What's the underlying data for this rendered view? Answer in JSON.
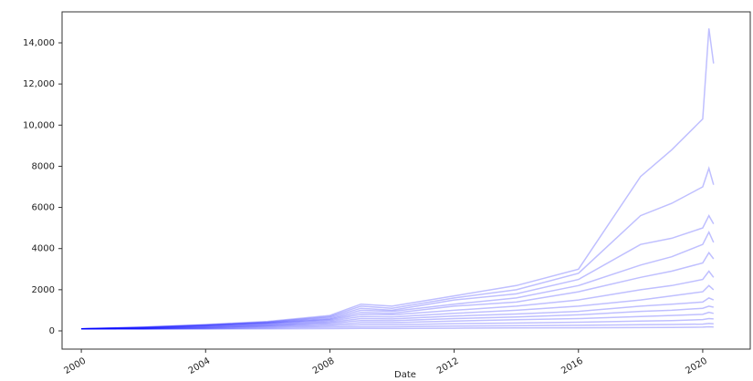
{
  "chart_data": {
    "type": "line",
    "xlabel": "Date",
    "x": [
      2000,
      2002,
      2004,
      2006,
      2008,
      2009,
      2010,
      2012,
      2014,
      2016,
      2018,
      2019,
      2020,
      2020.2,
      2020.35
    ],
    "series": [
      {
        "color": "#0000ff",
        "values": [
          100,
          190,
          310,
          460,
          750,
          1300,
          1200,
          1700,
          2200,
          3000,
          7500,
          8800,
          10300,
          14700,
          13000
        ]
      },
      {
        "color": "#0000ff",
        "values": [
          100,
          180,
          290,
          430,
          700,
          1200,
          1100,
          1600,
          2000,
          2800,
          5600,
          6200,
          7000,
          7900,
          7100
        ]
      },
      {
        "color": "#0000ff",
        "values": [
          100,
          170,
          280,
          410,
          650,
          1100,
          1000,
          1500,
          1800,
          2500,
          4200,
          4500,
          5000,
          5600,
          5200
        ]
      },
      {
        "color": "#0000ff",
        "values": [
          100,
          160,
          270,
          390,
          600,
          1000,
          950,
          1300,
          1600,
          2200,
          3200,
          3600,
          4200,
          4800,
          4300
        ]
      },
      {
        "color": "#0000ff",
        "values": [
          100,
          150,
          250,
          370,
          560,
          900,
          850,
          1200,
          1400,
          1900,
          2600,
          2900,
          3300,
          3800,
          3500
        ]
      },
      {
        "color": "#0000ff",
        "values": [
          100,
          140,
          230,
          340,
          520,
          800,
          780,
          1000,
          1200,
          1500,
          2000,
          2200,
          2500,
          2900,
          2600
        ]
      },
      {
        "color": "#0000ff",
        "values": [
          100,
          130,
          210,
          310,
          470,
          700,
          680,
          850,
          1000,
          1200,
          1500,
          1700,
          1900,
          2200,
          2000
        ]
      },
      {
        "color": "#0000ff",
        "values": [
          100,
          120,
          190,
          280,
          420,
          600,
          580,
          720,
          820,
          950,
          1200,
          1300,
          1400,
          1600,
          1500
        ]
      },
      {
        "color": "#0000ff",
        "values": [
          100,
          115,
          170,
          250,
          370,
          500,
          490,
          600,
          680,
          780,
          950,
          1000,
          1100,
          1200,
          1150
        ]
      },
      {
        "color": "#0000ff",
        "values": [
          100,
          110,
          150,
          220,
          310,
          400,
          400,
          480,
          540,
          600,
          700,
          750,
          800,
          900,
          850
        ]
      },
      {
        "color": "#0000ff",
        "values": [
          100,
          100,
          130,
          180,
          250,
          300,
          300,
          350,
          380,
          420,
          480,
          500,
          550,
          600,
          580
        ]
      },
      {
        "color": "#0000ff",
        "values": [
          100,
          95,
          110,
          140,
          180,
          200,
          200,
          230,
          250,
          270,
          300,
          310,
          330,
          360,
          340
        ]
      },
      {
        "color": "#0000ff",
        "values": [
          100,
          90,
          90,
          100,
          110,
          120,
          115,
          130,
          140,
          150,
          160,
          170,
          180,
          200,
          190
        ]
      }
    ],
    "alpha": 0.25,
    "xlim": [
      1999.38,
      2021.53
    ],
    "xticks": [
      2000,
      2004,
      2008,
      2012,
      2016,
      2020
    ],
    "ylim": [
      -886,
      15506
    ],
    "yticks": [
      0,
      2000,
      4000,
      6000,
      8000,
      {
        "value": 10000,
        "label": "10,000"
      },
      {
        "value": 12000,
        "label": "12,000"
      },
      {
        "value": 14000,
        "label": "14,000"
      }
    ]
  }
}
